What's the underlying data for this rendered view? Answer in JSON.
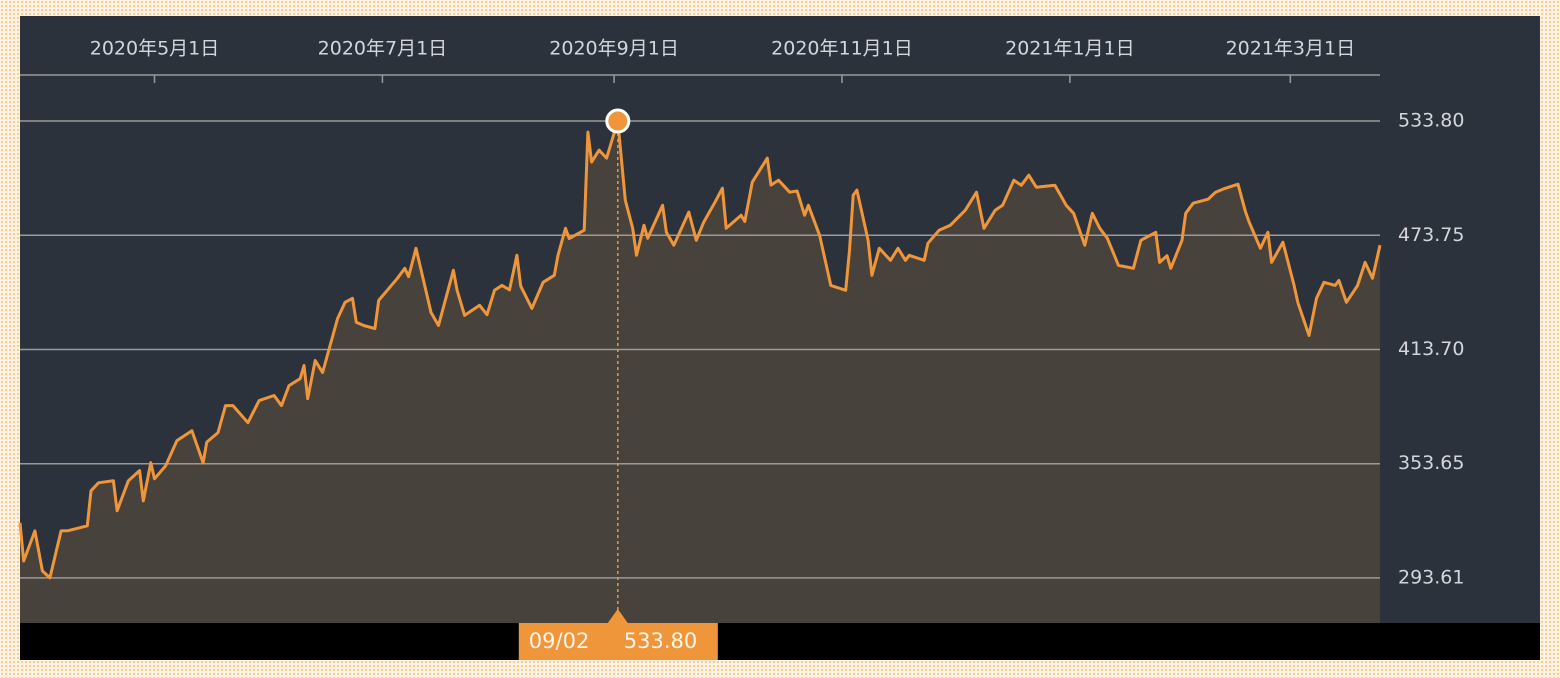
{
  "chart_data": {
    "type": "line",
    "color": "#f0963a",
    "grid": true,
    "xlim": [
      "2020-03-26",
      "2021-03-25"
    ],
    "ylim": [
      269.9,
      558.0
    ],
    "yticks": [
      293.61,
      353.65,
      {
        "value": 413.7,
        "label": "413.70"
      },
      473.75,
      {
        "value": 533.8,
        "label": "533.80"
      }
    ],
    "xticks": [
      {
        "value": "2020-05-01",
        "label": "2020年5月1日"
      },
      {
        "value": "2020-07-01",
        "label": "2020年7月1日"
      },
      {
        "value": "2020-09-01",
        "label": "2020年9月1日"
      },
      {
        "value": "2020-11-01",
        "label": "2020年11月1日"
      },
      {
        "value": "2021-01-01",
        "label": "2021年1月1日"
      },
      {
        "value": "2021-03-01",
        "label": "2021年3月1日"
      }
    ],
    "highlight": {
      "x": "2020-09-02",
      "value": 533.8,
      "date_label": "09/02",
      "value_label": "533.80"
    },
    "x": [
      "2020-03-26",
      "2020-03-27",
      "2020-03-30",
      "2020-04-01",
      "2020-04-03",
      "2020-04-06",
      "2020-04-08",
      "2020-04-13",
      "2020-04-14",
      "2020-04-16",
      "2020-04-20",
      "2020-04-21",
      "2020-04-24",
      "2020-04-27",
      "2020-04-28",
      "2020-04-30",
      "2020-05-01",
      "2020-05-04",
      "2020-05-07",
      "2020-05-11",
      "2020-05-14",
      "2020-05-15",
      "2020-05-18",
      "2020-05-20",
      "2020-05-22",
      "2020-05-26",
      "2020-05-29",
      "2020-06-02",
      "2020-06-04",
      "2020-06-06",
      "2020-06-09",
      "2020-06-10",
      "2020-06-11",
      "2020-06-13",
      "2020-06-15",
      "2020-06-17",
      "2020-06-19",
      "2020-06-21",
      "2020-06-23",
      "2020-06-24",
      "2020-06-26",
      "2020-06-29",
      "2020-06-30",
      "2020-07-05",
      "2020-07-07",
      "2020-07-08",
      "2020-07-10",
      "2020-07-14",
      "2020-07-16",
      "2020-07-20",
      "2020-07-21",
      "2020-07-23",
      "2020-07-27",
      "2020-07-29",
      "2020-07-31",
      "2020-08-02",
      "2020-08-04",
      "2020-08-06",
      "2020-08-07",
      "2020-08-10",
      "2020-08-13",
      "2020-08-16",
      "2020-08-17",
      "2020-08-19",
      "2020-08-20",
      "2020-08-24",
      "2020-08-25",
      "2020-08-26",
      "2020-08-28",
      "2020-08-30",
      "2020-09-02",
      "2020-09-04",
      "2020-09-06",
      "2020-09-07",
      "2020-09-09",
      "2020-09-10",
      "2020-09-14",
      "2020-09-15",
      "2020-09-17",
      "2020-09-21",
      "2020-09-23",
      "2020-09-25",
      "2020-09-28",
      "2020-09-30",
      "2020-10-01",
      "2020-10-05",
      "2020-10-06",
      "2020-10-08",
      "2020-10-12",
      "2020-10-13",
      "2020-10-15",
      "2020-10-18",
      "2020-10-20",
      "2020-10-22",
      "2020-10-23",
      "2020-10-26",
      "2020-10-28",
      "2020-10-29",
      "2020-11-02",
      "2020-11-03",
      "2020-11-04",
      "2020-11-05",
      "2020-11-08",
      "2020-11-09",
      "2020-11-11",
      "2020-11-14",
      "2020-11-16",
      "2020-11-18",
      "2020-11-19",
      "2020-11-23",
      "2020-11-24",
      "2020-11-27",
      "2020-11-30",
      "2020-12-04",
      "2020-12-07",
      "2020-12-09",
      "2020-12-12",
      "2020-12-14",
      "2020-12-17",
      "2020-12-19",
      "2020-12-21",
      "2020-12-23",
      "2020-12-28",
      "2020-12-31",
      "2021-01-02",
      "2021-01-05",
      "2021-01-07",
      "2021-01-09",
      "2021-01-11",
      "2021-01-14",
      "2021-01-18",
      "2021-01-20",
      "2021-01-24",
      "2021-01-25",
      "2021-01-27",
      "2021-01-28",
      "2021-01-31",
      "2021-02-01",
      "2021-02-03",
      "2021-02-07",
      "2021-02-09",
      "2021-02-11",
      "2021-02-15",
      "2021-02-17",
      "2021-02-18",
      "2021-02-21",
      "2021-02-23",
      "2021-02-24",
      "2021-02-27",
      "2021-03-02",
      "2021-03-03",
      "2021-03-06",
      "2021-03-08",
      "2021-03-10",
      "2021-03-13",
      "2021-03-14",
      "2021-03-16",
      "2021-03-19",
      "2021-03-21",
      "2021-03-23",
      "2021-03-25"
    ],
    "values": [
      322.6,
      302.5,
      318.3,
      297.3,
      293.6,
      318.3,
      318.5,
      321.0,
      339.4,
      343.6,
      344.7,
      328.9,
      344.7,
      350.0,
      334.1,
      354.2,
      345.7,
      352.6,
      365.8,
      371.0,
      354.2,
      365.0,
      370.0,
      384.2,
      384.2,
      375.2,
      386.8,
      389.5,
      384.2,
      394.7,
      398.4,
      405.3,
      387.9,
      407.9,
      401.6,
      415.8,
      430.0,
      438.5,
      440.6,
      428.0,
      426.3,
      424.7,
      439.5,
      451.1,
      456.4,
      452.0,
      466.9,
      433.2,
      426.3,
      455.3,
      444.8,
      431.6,
      436.9,
      432.0,
      444.8,
      447.4,
      445.0,
      463.2,
      447.0,
      435.3,
      449.0,
      452.7,
      463.2,
      477.4,
      472.0,
      476.4,
      528.0,
      512.2,
      518.5,
      514.3,
      533.8,
      492.2,
      477.4,
      463.2,
      479.0,
      472.2,
      489.5,
      475.3,
      468.5,
      485.9,
      471.1,
      480.6,
      491.1,
      498.5,
      477.4,
      484.3,
      481.0,
      501.7,
      514.3,
      500.1,
      502.7,
      496.4,
      497.0,
      484.3,
      489.5,
      473.7,
      456.4,
      447.4,
      444.8,
      465.8,
      494.8,
      497.5,
      471.1,
      452.7,
      466.9,
      460.6,
      466.9,
      460.6,
      463.2,
      460.6,
      469.5,
      476.4,
      479.0,
      486.9,
      496.4,
      477.4,
      486.9,
      489.5,
      502.7,
      500.0,
      505.3,
      499.0,
      500.0,
      489.5,
      485.3,
      468.5,
      485.3,
      477.4,
      472.2,
      457.9,
      456.4,
      471.1,
      475.3,
      459.5,
      463.0,
      456.4,
      471.1,
      485.3,
      490.6,
      492.7,
      496.4,
      498.0,
      500.6,
      486.1,
      480.6,
      466.9,
      475.3,
      459.5,
      470.1,
      447.4,
      438.5,
      421.1,
      440.6,
      449.0,
      447.4,
      450.0,
      438.5,
      447.4,
      459.5,
      451.1,
      468.5
    ]
  }
}
